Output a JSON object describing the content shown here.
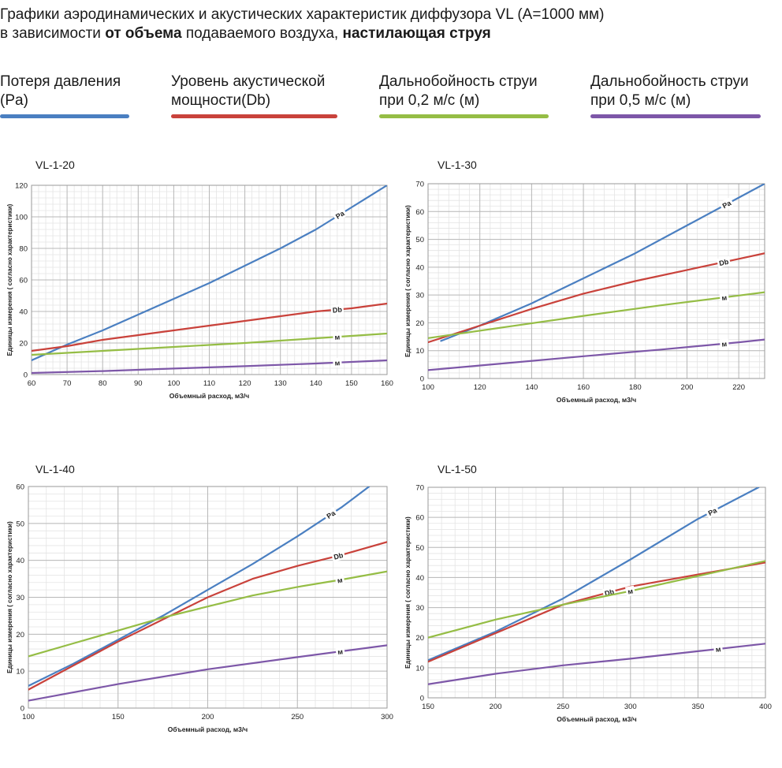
{
  "header": {
    "line1": "Графики аэродинамических и акустических характеристик  диффузора VL (А=1000 мм)",
    "line2_part1": "в зависимости ",
    "line2_bold1": "от объема",
    "line2_part2": " подаваемого воздуха, ",
    "line2_bold2": "настилающая струя"
  },
  "legend": [
    {
      "label": "Потеря давления\n(Pa)",
      "color": "#4a7fc1"
    },
    {
      "label": "Уровень акустической\nмощности(Db)",
      "color": "#c9423b"
    },
    {
      "label": "Дальнобойность струи\nпри 0,2 м/с (м)",
      "color": "#95bd45"
    },
    {
      "label": "Дальнобойность струи\nпри 0,5 м/с (м)",
      "color": "#7d57a8"
    }
  ],
  "chart_data": [
    {
      "type": "line",
      "title": "VL-1-20",
      "xlabel": "Объемный расход, м3/ч",
      "ylabel": "Единицы измерения ( согласно характеристики)",
      "xlim": [
        60,
        160
      ],
      "ylim": [
        0,
        120
      ],
      "xticks": [
        60,
        70,
        80,
        90,
        100,
        110,
        120,
        130,
        140,
        150,
        160
      ],
      "yticks": [
        0,
        20,
        40,
        60,
        80,
        100,
        120
      ],
      "grid": true,
      "series": [
        {
          "name": "Pa",
          "color": "#4a7fc1",
          "x": [
            60,
            70,
            80,
            90,
            100,
            110,
            120,
            130,
            140,
            150,
            160
          ],
          "y": [
            9,
            19,
            28,
            38,
            48,
            58,
            69,
            80,
            92,
            106,
            120
          ]
        },
        {
          "name": "Db",
          "color": "#c9423b",
          "x": [
            60,
            70,
            80,
            90,
            100,
            110,
            120,
            130,
            140,
            150,
            160
          ],
          "y": [
            15,
            18,
            22,
            25,
            28,
            31,
            34,
            37,
            40,
            42,
            45
          ]
        },
        {
          "name": "м",
          "color": "#95bd45",
          "x": [
            60,
            80,
            100,
            120,
            140,
            160
          ],
          "y": [
            12.5,
            15,
            17.5,
            20,
            23,
            26
          ]
        },
        {
          "name": "м",
          "color": "#7d57a8",
          "x": [
            60,
            80,
            100,
            120,
            140,
            160
          ],
          "y": [
            1,
            2.2,
            3.8,
            5.3,
            7,
            9
          ]
        }
      ]
    },
    {
      "type": "line",
      "title": "VL-1-30",
      "xlabel": "Объемный расход, м3/ч",
      "ylabel": "Единицы измерения ( согласно характеристики)",
      "xlim": [
        100,
        230
      ],
      "ylim": [
        0,
        70
      ],
      "xticks": [
        100,
        120,
        140,
        160,
        180,
        200,
        220
      ],
      "yticks": [
        0,
        10,
        20,
        30,
        40,
        50,
        60,
        70
      ],
      "grid": true,
      "series": [
        {
          "name": "Pa",
          "color": "#4a7fc1",
          "x": [
            105,
            120,
            140,
            160,
            180,
            200,
            220,
            230
          ],
          "y": [
            13.5,
            19,
            27,
            36,
            45,
            55,
            65,
            70
          ]
        },
        {
          "name": "Db",
          "color": "#c9423b",
          "x": [
            100,
            120,
            140,
            160,
            180,
            200,
            220,
            230
          ],
          "y": [
            13,
            19,
            25,
            30.5,
            35,
            39,
            43,
            45
          ]
        },
        {
          "name": "м",
          "color": "#95bd45",
          "x": [
            100,
            130,
            160,
            190,
            220,
            230
          ],
          "y": [
            14.5,
            18.5,
            22.5,
            26.3,
            29.8,
            31
          ]
        },
        {
          "name": "м",
          "color": "#7d57a8",
          "x": [
            100,
            130,
            160,
            190,
            220,
            230
          ],
          "y": [
            3,
            5.5,
            8,
            10.4,
            13,
            14
          ]
        }
      ]
    },
    {
      "type": "line",
      "title": "VL-1-40",
      "xlabel": "Объемный расход, м3/ч",
      "ylabel": "Единицы измерения ( согласно характеристики)",
      "xlim": [
        100,
        300
      ],
      "ylim": [
        0,
        60
      ],
      "xticks": [
        100,
        150,
        200,
        250,
        300
      ],
      "yticks": [
        0,
        10,
        20,
        30,
        40,
        50,
        60
      ],
      "grid": true,
      "series": [
        {
          "name": "Pa",
          "color": "#4a7fc1",
          "x": [
            100,
            125,
            150,
            175,
            200,
            225,
            250,
            275,
            290
          ],
          "y": [
            6,
            12,
            18.5,
            25,
            32,
            39,
            46.5,
            54.5,
            60
          ]
        },
        {
          "name": "Db",
          "color": "#c9423b",
          "x": [
            100,
            125,
            150,
            175,
            200,
            225,
            250,
            275,
            300
          ],
          "y": [
            5,
            11.5,
            18,
            24,
            30,
            35,
            38.5,
            41.5,
            45
          ]
        },
        {
          "name": "м",
          "color": "#95bd45",
          "x": [
            100,
            125,
            150,
            175,
            200,
            225,
            250,
            275,
            300
          ],
          "y": [
            14,
            17.5,
            21,
            24.5,
            27.5,
            30.5,
            32.8,
            34.8,
            37
          ]
        },
        {
          "name": "м",
          "color": "#7d57a8",
          "x": [
            100,
            150,
            200,
            250,
            300
          ],
          "y": [
            2,
            6.5,
            10.5,
            13.8,
            17
          ]
        }
      ]
    },
    {
      "type": "line",
      "title": "VL-1-50",
      "xlabel": "Объемный расход, м3/ч",
      "ylabel": "Единицы измерения ( согласно характеристики)",
      "xlim": [
        150,
        400
      ],
      "ylim": [
        0,
        70
      ],
      "xticks": [
        150,
        200,
        250,
        300,
        350,
        400
      ],
      "yticks": [
        0,
        10,
        20,
        30,
        40,
        50,
        60,
        70
      ],
      "grid": true,
      "series": [
        {
          "name": "Pa",
          "color": "#4a7fc1",
          "x": [
            150,
            200,
            250,
            300,
            350,
            395
          ],
          "y": [
            12.5,
            22,
            33,
            46,
            59.5,
            70
          ]
        },
        {
          "name": "Db",
          "color": "#c9423b",
          "x": [
            150,
            200,
            250,
            300,
            350,
            400
          ],
          "y": [
            12,
            21.5,
            31,
            37,
            41,
            45
          ]
        },
        {
          "name": "м",
          "color": "#95bd45",
          "x": [
            150,
            200,
            250,
            300,
            350,
            400
          ],
          "y": [
            20,
            26,
            31,
            35.5,
            40.5,
            45.5
          ]
        },
        {
          "name": "м",
          "color": "#7d57a8",
          "x": [
            150,
            200,
            250,
            300,
            350,
            400
          ],
          "y": [
            4.5,
            8,
            10.8,
            13,
            15.5,
            18
          ]
        }
      ]
    }
  ]
}
